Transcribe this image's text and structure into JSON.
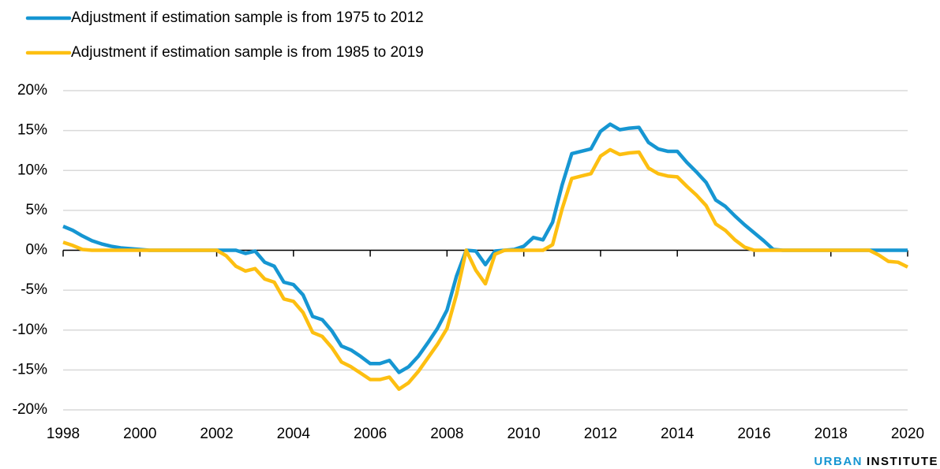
{
  "chart_data": {
    "type": "line",
    "series": [
      {
        "name": "Adjustment if estimation sample is from 1975 to 2012",
        "color": "#1696d2",
        "values": [
          3.0,
          2.5,
          1.8,
          1.2,
          0.8,
          0.5,
          0.3,
          0.2,
          0.1,
          0,
          0,
          0,
          0,
          0,
          0,
          0,
          0,
          0,
          0,
          -0.4,
          -0.1,
          -1.5,
          -2.0,
          -4.0,
          -4.3,
          -5.6,
          -8.3,
          -8.7,
          -10.1,
          -12.0,
          -12.5,
          -13.3,
          -14.2,
          -14.2,
          -13.8,
          -15.3,
          -14.6,
          -13.3,
          -11.6,
          -9.8,
          -7.5,
          -3.2,
          0,
          -0.1,
          -1.8,
          -0.1,
          0,
          0.1,
          0.5,
          1.6,
          1.3,
          3.5,
          8.2,
          12.1,
          12.4,
          12.7,
          14.9,
          15.8,
          15.1,
          15.3,
          15.4,
          13.5,
          12.7,
          12.4,
          12.4,
          11.0,
          9.8,
          8.5,
          6.3,
          5.5,
          4.3,
          3.2,
          2.2,
          1.2,
          0.1,
          0,
          0,
          0,
          0,
          0,
          0,
          0,
          0,
          0,
          0,
          0,
          0,
          0,
          0
        ]
      },
      {
        "name": "Adjustment if estimation sample is from 1985 to 2019",
        "color": "#fdbf11",
        "values": [
          1.0,
          0.6,
          0.1,
          0,
          0,
          0,
          0,
          0,
          0,
          0,
          0,
          0,
          0,
          0,
          0,
          0,
          0,
          -0.7,
          -2.0,
          -2.6,
          -2.3,
          -3.6,
          -4.0,
          -6.1,
          -6.4,
          -7.8,
          -10.3,
          -10.8,
          -12.2,
          -14.0,
          -14.6,
          -15.4,
          -16.2,
          -16.2,
          -15.9,
          -17.4,
          -16.6,
          -15.2,
          -13.5,
          -11.8,
          -9.8,
          -5.5,
          0,
          -2.5,
          -4.2,
          -0.5,
          0,
          0,
          0,
          0,
          0,
          0.7,
          5.2,
          9.0,
          9.3,
          9.6,
          11.8,
          12.6,
          12.0,
          12.2,
          12.3,
          10.3,
          9.6,
          9.3,
          9.2,
          8.0,
          6.9,
          5.6,
          3.3,
          2.5,
          1.3,
          0.4,
          0,
          0,
          0,
          0,
          0,
          0,
          0,
          0,
          0,
          0,
          0,
          0,
          0,
          -0.6,
          -1.4,
          -1.5,
          -2.1
        ]
      }
    ],
    "x": [
      1998,
      1998.25,
      1998.5,
      1998.75,
      1999,
      1999.25,
      1999.5,
      1999.75,
      2000,
      2000.25,
      2000.5,
      2000.75,
      2001,
      2001.25,
      2001.5,
      2001.75,
      2002,
      2002.25,
      2002.5,
      2002.75,
      2003,
      2003.25,
      2003.5,
      2003.75,
      2004,
      2004.25,
      2004.5,
      2004.75,
      2005,
      2005.25,
      2005.5,
      2005.75,
      2006,
      2006.25,
      2006.5,
      2006.75,
      2007,
      2007.25,
      2007.5,
      2007.75,
      2008,
      2008.25,
      2008.5,
      2008.75,
      2009,
      2009.25,
      2009.5,
      2009.75,
      2010,
      2010.25,
      2010.5,
      2010.75,
      2011,
      2011.25,
      2011.5,
      2011.75,
      2012,
      2012.25,
      2012.5,
      2012.75,
      2013,
      2013.25,
      2013.5,
      2013.75,
      2014,
      2014.25,
      2014.5,
      2014.75,
      2015,
      2015.25,
      2015.5,
      2015.75,
      2016,
      2016.25,
      2016.5,
      2016.75,
      2017,
      2017.25,
      2017.5,
      2017.75,
      2018,
      2018.25,
      2018.5,
      2018.75,
      2019,
      2019.25,
      2019.5,
      2019.75,
      2020
    ],
    "xlim": [
      1998,
      2020
    ],
    "xticks": [
      1998,
      2000,
      2002,
      2004,
      2006,
      2008,
      2010,
      2012,
      2014,
      2016,
      2018,
      2020
    ],
    "ylim": [
      -20,
      20
    ],
    "yticks": [
      {
        "value": -20,
        "label": "-20%"
      },
      {
        "value": -15,
        "label": "-15%"
      },
      {
        "value": -10,
        "label": "-10%"
      },
      {
        "value": -5,
        "label": "-5%"
      },
      {
        "value": 0,
        "label": "0%"
      },
      {
        "value": 5,
        "label": "5%"
      },
      {
        "value": 10,
        "label": "10%"
      },
      {
        "value": 15,
        "label": "15%"
      },
      {
        "value": 20,
        "label": "20%"
      }
    ],
    "grid": true,
    "legend": "top-left",
    "brand": {
      "name": "URBAN",
      "suffix": "INSTITUTE"
    }
  }
}
